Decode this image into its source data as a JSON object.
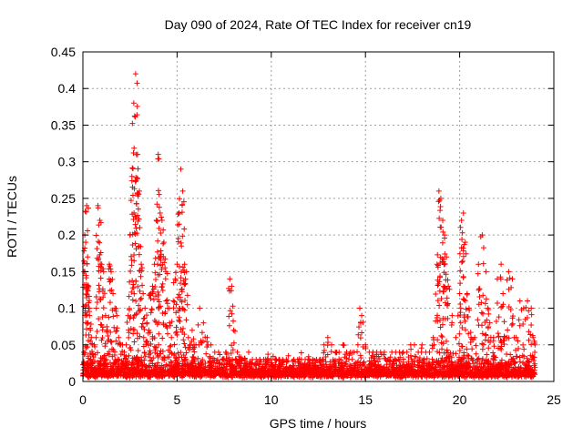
{
  "chart_data": {
    "type": "scatter",
    "title": "Day 090 of 2024, Rate Of TEC Index for receiver cn19",
    "xlabel": "GPS time / hours",
    "ylabel": "ROTI / TECUs",
    "xlim": [
      0,
      25
    ],
    "ylim": [
      0,
      0.45
    ],
    "xticks": [
      "0",
      "5",
      "10",
      "15",
      "20",
      "25"
    ],
    "yticks": [
      "0",
      "0.05",
      "0.1",
      "0.15",
      "0.2",
      "0.25",
      "0.3",
      "0.35",
      "0.4",
      "0.45"
    ],
    "grid": true,
    "marker": "+",
    "color": "#ff0000",
    "series": [
      {
        "name": "ROTI",
        "x": [
          0.05,
          0.1,
          0.15,
          0.2,
          0.25,
          0.3,
          0.35,
          0.4,
          0.45,
          0.5,
          0.6,
          0.7,
          0.8,
          0.9,
          1.0,
          1.1,
          1.2,
          1.3,
          1.4,
          1.5,
          1.6,
          1.7,
          1.8,
          1.9,
          2.0,
          2.1,
          2.2,
          2.3,
          2.4,
          2.5,
          2.6,
          2.7,
          2.8,
          2.9,
          3.0,
          3.1,
          3.2,
          3.3,
          3.4,
          3.5,
          3.6,
          3.7,
          3.8,
          3.9,
          4.0,
          4.1,
          4.2,
          4.3,
          4.4,
          4.5,
          4.6,
          4.7,
          4.8,
          4.9,
          5.0,
          5.1,
          5.2,
          5.3,
          5.4,
          5.5,
          5.6,
          5.7,
          5.8,
          5.9,
          6.0,
          6.2,
          6.4,
          6.6,
          6.8,
          7.0,
          7.2,
          7.4,
          7.6,
          7.8,
          7.9,
          8.0,
          8.2,
          8.4,
          8.6,
          8.8,
          9.0,
          9.2,
          9.4,
          9.6,
          9.8,
          10.0,
          10.2,
          10.4,
          10.6,
          10.8,
          11.0,
          11.2,
          11.4,
          11.6,
          11.8,
          12.0,
          12.2,
          12.4,
          12.6,
          12.8,
          13.0,
          13.2,
          13.4,
          13.6,
          13.8,
          14.0,
          14.2,
          14.4,
          14.6,
          14.7,
          14.8,
          15.0,
          15.2,
          15.4,
          15.6,
          15.8,
          16.0,
          16.2,
          16.4,
          16.6,
          16.8,
          17.0,
          17.2,
          17.4,
          17.6,
          17.8,
          18.0,
          18.2,
          18.4,
          18.6,
          18.8,
          18.9,
          19.0,
          19.1,
          19.2,
          19.3,
          19.4,
          19.6,
          19.8,
          20.0,
          20.1,
          20.2,
          20.3,
          20.4,
          20.5,
          20.6,
          20.8,
          21.0,
          21.2,
          21.4,
          21.5,
          21.6,
          21.8,
          22.0,
          22.2,
          22.3,
          22.4,
          22.6,
          22.8,
          22.9,
          23.0,
          23.2,
          23.4,
          23.6,
          23.8,
          23.9,
          24.0
        ],
        "y": [
          0.04,
          0.2,
          0.19,
          0.24,
          0.17,
          0.13,
          0.09,
          0.07,
          0.06,
          0.05,
          0.05,
          0.06,
          0.24,
          0.22,
          0.16,
          0.15,
          0.09,
          0.07,
          0.16,
          0.15,
          0.12,
          0.1,
          0.09,
          0.06,
          0.05,
          0.05,
          0.04,
          0.05,
          0.09,
          0.2,
          0.28,
          0.38,
          0.42,
          0.31,
          0.26,
          0.16,
          0.12,
          0.1,
          0.08,
          0.07,
          0.12,
          0.13,
          0.16,
          0.22,
          0.31,
          0.23,
          0.22,
          0.19,
          0.15,
          0.1,
          0.08,
          0.06,
          0.11,
          0.14,
          0.16,
          0.23,
          0.29,
          0.26,
          0.16,
          0.15,
          0.06,
          0.05,
          0.07,
          0.05,
          0.05,
          0.1,
          0.08,
          0.06,
          0.05,
          0.04,
          0.04,
          0.03,
          0.04,
          0.14,
          0.13,
          0.07,
          0.04,
          0.03,
          0.03,
          0.04,
          0.03,
          0.03,
          0.03,
          0.03,
          0.03,
          0.03,
          0.03,
          0.03,
          0.03,
          0.03,
          0.02,
          0.03,
          0.03,
          0.03,
          0.03,
          0.03,
          0.03,
          0.03,
          0.03,
          0.05,
          0.06,
          0.05,
          0.04,
          0.04,
          0.05,
          0.04,
          0.04,
          0.04,
          0.05,
          0.1,
          0.09,
          0.05,
          0.04,
          0.04,
          0.04,
          0.04,
          0.04,
          0.03,
          0.04,
          0.04,
          0.04,
          0.04,
          0.04,
          0.05,
          0.05,
          0.04,
          0.05,
          0.04,
          0.04,
          0.06,
          0.16,
          0.26,
          0.25,
          0.22,
          0.2,
          0.17,
          0.13,
          0.09,
          0.06,
          0.12,
          0.22,
          0.23,
          0.19,
          0.12,
          0.1,
          0.06,
          0.06,
          0.16,
          0.2,
          0.15,
          0.1,
          0.08,
          0.06,
          0.14,
          0.16,
          0.12,
          0.06,
          0.15,
          0.14,
          0.06,
          0.06,
          0.11,
          0.1,
          0.11,
          0.1,
          0.06,
          0.05
        ],
        "background_band": [
          0.005,
          0.035
        ]
      }
    ]
  }
}
